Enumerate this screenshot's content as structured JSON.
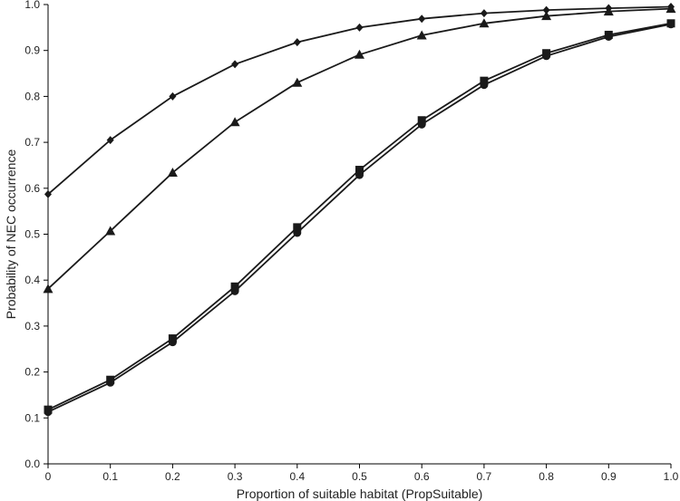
{
  "chart_data": {
    "type": "line",
    "title": "",
    "xlabel": "Proportion of suitable habitat (PropSuitable)",
    "ylabel": "Probability of NEC occurrence",
    "xlim": [
      0,
      1.0
    ],
    "ylim": [
      0,
      1.0
    ],
    "grid": false,
    "legend": "none",
    "x_ticks": [
      "0",
      "0.1",
      "0.2",
      "0.3",
      "0.4",
      "0.5",
      "0.6",
      "0.7",
      "0.8",
      "0.9",
      "1.0"
    ],
    "y_ticks": [
      "0.0",
      "0.1",
      "0.2",
      "0.3",
      "0.4",
      "0.5",
      "0.6",
      "0.7",
      "0.8",
      "0.9",
      "1.0"
    ],
    "x": [
      0,
      0.1,
      0.2,
      0.3,
      0.4,
      0.5,
      0.6,
      0.7,
      0.8,
      0.9,
      1.0
    ],
    "series": [
      {
        "marker": "diamond",
        "color": "#1a1a1a",
        "values": [
          0.587,
          0.705,
          0.8,
          0.87,
          0.918,
          0.95,
          0.969,
          0.981,
          0.988,
          0.992,
          0.995
        ]
      },
      {
        "marker": "triangle",
        "color": "#1a1a1a",
        "values": [
          0.381,
          0.507,
          0.634,
          0.744,
          0.83,
          0.891,
          0.933,
          0.959,
          0.975,
          0.985,
          0.991
        ]
      },
      {
        "marker": "square",
        "color": "#1a1a1a",
        "values": [
          0.118,
          0.183,
          0.273,
          0.386,
          0.515,
          0.64,
          0.748,
          0.834,
          0.894,
          0.934,
          0.959
        ]
      },
      {
        "marker": "circle",
        "color": "#1a1a1a",
        "values": [
          0.113,
          0.177,
          0.265,
          0.376,
          0.503,
          0.629,
          0.739,
          0.825,
          0.888,
          0.93,
          0.957
        ]
      }
    ]
  }
}
